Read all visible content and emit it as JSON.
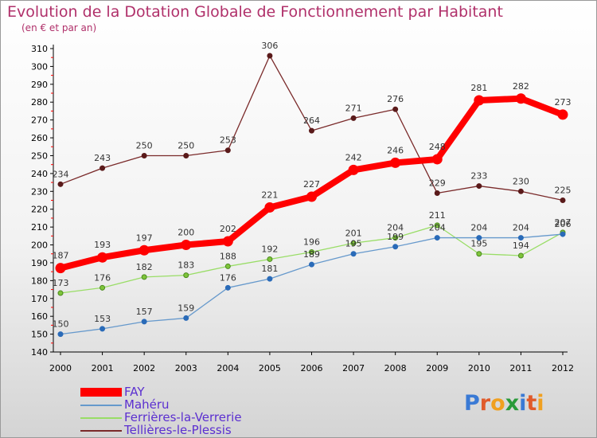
{
  "title": "Evolution de la Dotation Globale de Fonctionnement par Habitant",
  "subtitle": "(en € et par an)",
  "colors": {
    "title": "#b0306a",
    "legend_text": "#5b2fd0",
    "axis": "#000000",
    "grid_tick": "#ff0000"
  },
  "logo": {
    "text": "Proxiti",
    "letters": [
      {
        "ch": "P",
        "color": "#3a7ad5"
      },
      {
        "ch": "r",
        "color": "#e05a2a"
      },
      {
        "ch": "o",
        "color": "#f0a020"
      },
      {
        "ch": "x",
        "color": "#2a9a3a"
      },
      {
        "ch": "i",
        "color": "#3a7ad5"
      },
      {
        "ch": "t",
        "color": "#e05a2a"
      },
      {
        "ch": "i",
        "color": "#f0a020"
      }
    ]
  },
  "chart_data": {
    "type": "line",
    "title": "Evolution de la Dotation Globale de Fonctionnement par Habitant",
    "subtitle": "(en € et par an)",
    "xlabel": "",
    "ylabel": "",
    "x": [
      "2000",
      "2001",
      "2002",
      "2003",
      "2004",
      "2005",
      "2006",
      "2007",
      "2008",
      "2009",
      "2010",
      "2011",
      "2012"
    ],
    "ylim": [
      140,
      310
    ],
    "yticks": [
      140,
      150,
      160,
      170,
      180,
      190,
      200,
      210,
      220,
      230,
      240,
      250,
      260,
      270,
      280,
      290,
      300,
      310
    ],
    "legend_position": "bottom-left",
    "series": [
      {
        "name": "FAY",
        "color": "#ff0000",
        "values": [
          187,
          193,
          197,
          200,
          202,
          221,
          227,
          242,
          246,
          248,
          281,
          282,
          273
        ]
      },
      {
        "name": "Mahéru",
        "color": "#6699cc",
        "values": [
          150,
          153,
          157,
          159,
          176,
          181,
          189,
          195,
          199,
          204,
          204,
          204,
          206
        ]
      },
      {
        "name": "Ferrières-la-Verrerie",
        "color": "#99dd66",
        "values": [
          173,
          176,
          182,
          183,
          188,
          192,
          196,
          201,
          204,
          211,
          195,
          194,
          207
        ]
      },
      {
        "name": "Tellières-le-Plessis",
        "color": "#7a2a2a",
        "values": [
          234,
          243,
          250,
          250,
          253,
          306,
          264,
          271,
          276,
          229,
          233,
          230,
          225
        ]
      }
    ],
    "label_values": {
      "FAY": [
        "187",
        "193",
        "197",
        "200",
        "202",
        "221",
        "227",
        "242",
        "246",
        "248",
        "281",
        "282",
        "273"
      ],
      "Mahéru": [
        "150",
        "153",
        "157",
        "159",
        "176",
        "181",
        "189",
        "195",
        "199",
        "204",
        "204",
        "204",
        "206"
      ],
      "Ferrières-la-Verrerie": [
        "173",
        "176",
        "182",
        "183",
        "188",
        "192",
        "196",
        "201",
        "204",
        "211",
        "195",
        "194",
        "207"
      ],
      "Tellières-le-Plessis": [
        "234",
        "243",
        "250",
        "250",
        "253",
        "306",
        "264",
        "271",
        "276",
        "229",
        "233",
        "230",
        "225"
      ]
    }
  }
}
